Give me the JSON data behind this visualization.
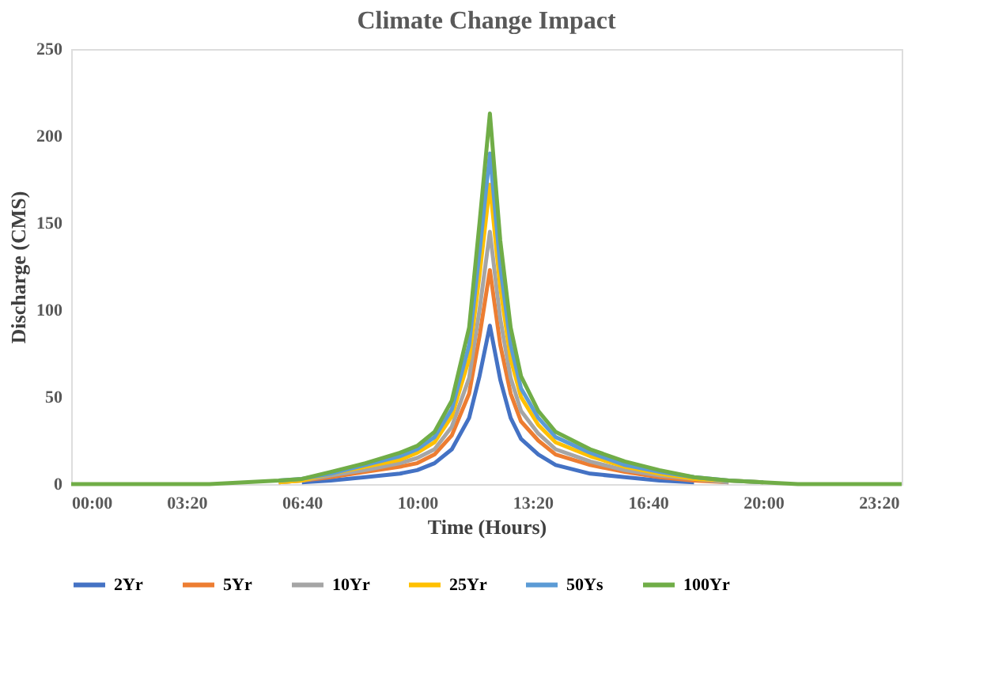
{
  "chart_data": {
    "type": "line",
    "title": "Climate Change Impact",
    "xlabel": "Time (Hours)",
    "ylabel": "Discharge (CMS)",
    "x": [
      0,
      4,
      5,
      6,
      6.667,
      7.5,
      8.5,
      9.5,
      10,
      10.5,
      11,
      11.5,
      11.8,
      12.1,
      12.4,
      12.7,
      13,
      13.5,
      14,
      15,
      16,
      17,
      18,
      19,
      20,
      21,
      24
    ],
    "series": [
      {
        "name": "2Yr",
        "color": "#4472c4",
        "values": [
          null,
          null,
          null,
          null,
          1,
          2,
          4,
          6,
          8,
          12,
          20,
          38,
          62,
          91,
          60,
          38,
          26,
          17,
          11,
          6,
          4,
          2,
          1,
          null,
          null,
          null,
          null
        ]
      },
      {
        "name": "5Yr",
        "color": "#ed7d31",
        "values": [
          null,
          null,
          null,
          1,
          2,
          4,
          7,
          10,
          12,
          17,
          28,
          52,
          85,
          123,
          80,
          52,
          36,
          25,
          17,
          11,
          7,
          4,
          2,
          1,
          null,
          null,
          null
        ]
      },
      {
        "name": "10Yr",
        "color": "#a5a5a5",
        "values": [
          null,
          null,
          null,
          1,
          2,
          5,
          8,
          12,
          15,
          20,
          33,
          61,
          100,
          145,
          95,
          61,
          42,
          29,
          20,
          13,
          8,
          5,
          3,
          1,
          null,
          null,
          null
        ]
      },
      {
        "name": "25Yr",
        "color": "#ffc000",
        "values": [
          null,
          null,
          null,
          1,
          2,
          6,
          10,
          14,
          18,
          24,
          39,
          72,
          120,
          172,
          113,
          72,
          50,
          34,
          24,
          16,
          10,
          6,
          3,
          2,
          1,
          null,
          null
        ]
      },
      {
        "name": "50Ys",
        "color": "#5b9bd5",
        "values": [
          null,
          null,
          null,
          2,
          3,
          6,
          11,
          16,
          20,
          27,
          43,
          80,
          133,
          190,
          125,
          80,
          55,
          38,
          27,
          18,
          11,
          7,
          4,
          2,
          1,
          null,
          null
        ]
      },
      {
        "name": "100Yr",
        "color": "#70ad47",
        "values": [
          0,
          0,
          1,
          2,
          3,
          7,
          12,
          18,
          22,
          30,
          48,
          90,
          150,
          213,
          140,
          90,
          62,
          42,
          30,
          20,
          13,
          8,
          4,
          2,
          1,
          0,
          0
        ]
      }
    ],
    "xlim": [
      0,
      24
    ],
    "xticks": [
      {
        "value": 0,
        "label": "00:00"
      },
      {
        "value": 3.3333,
        "label": "03:20"
      },
      {
        "value": 6.6667,
        "label": "06:40"
      },
      {
        "value": 10,
        "label": "10:00"
      },
      {
        "value": 13.3333,
        "label": "13:20"
      },
      {
        "value": 16.6667,
        "label": "16:40"
      },
      {
        "value": 20,
        "label": "20:00"
      },
      {
        "value": 23.3333,
        "label": "23:20"
      }
    ],
    "ylim": [
      0,
      250
    ],
    "yticks": [
      0,
      50,
      100,
      150,
      200,
      250
    ],
    "grid": false,
    "legend": "bottom",
    "marker": "none",
    "line_style": "solid"
  }
}
